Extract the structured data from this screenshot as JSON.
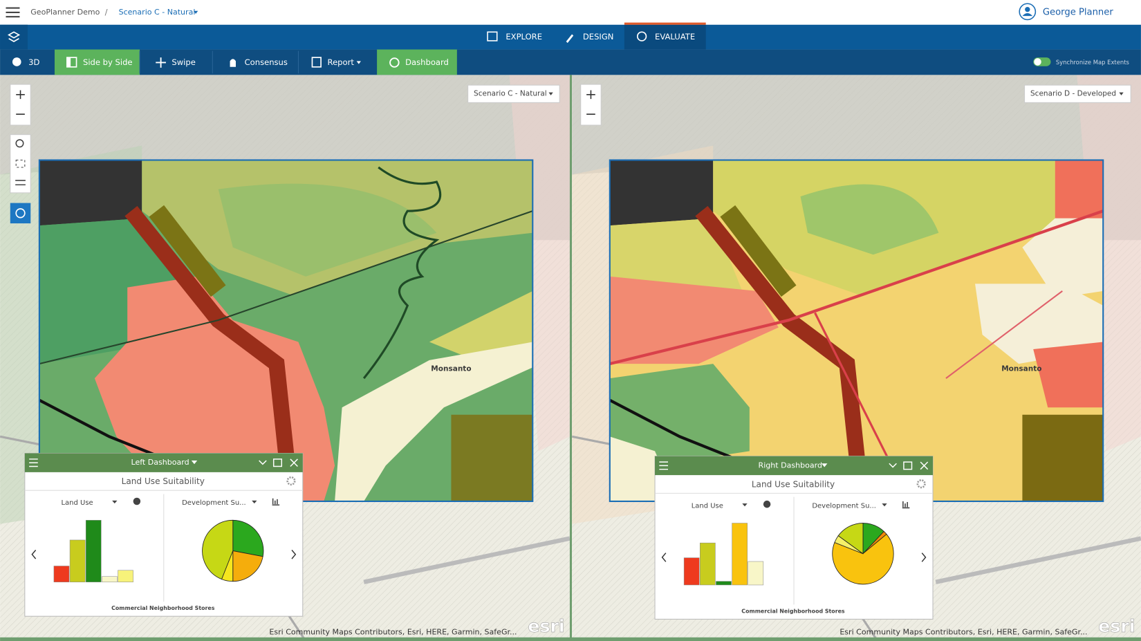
{
  "header": {
    "app": "GeoPlanner Demo",
    "separator": "/",
    "scenario": "Scenario C - Natural",
    "user": "George Planner"
  },
  "nav": {
    "tabs": [
      "EXPLORE",
      "DESIGN",
      "EVALUATE"
    ]
  },
  "toolbar": {
    "items": [
      "3D",
      "Side by Side",
      "Swipe",
      "Consensus",
      "Report",
      "Dashboard"
    ],
    "sync": "Synchronize Map Extents"
  },
  "maps": [
    {
      "scenario": "Scenario C - Natural",
      "place": "Monsanto",
      "attribution": "Esri Community Maps Contributors, Esri, HERE, Garmin, SafeGr...",
      "logo": "esri",
      "dashboard": {
        "title": "Left Dashboard",
        "heading": "Land Use Suitability",
        "left_label": "Land Use",
        "right_label": "Development Su...",
        "footer": "Commercial Neighborhood Stores",
        "bars": [
          26,
          68,
          100,
          9,
          19
        ],
        "bar_colors": [
          "#ee3a1e",
          "#c8cc1e",
          "#1f8a1a",
          "#f8f6c8",
          "#f7f27a"
        ],
        "pie": [
          28,
          22,
          6,
          44
        ],
        "pie_colors": [
          "#2ba81e",
          "#f5ad0c",
          "#f5e61e",
          "#c6d815"
        ]
      }
    },
    {
      "scenario": "Scenario D - Developed",
      "place": "Monsanto",
      "attribution": "Esri Community Maps Contributors, Esri, HERE, Garmin, SafeGr...",
      "logo": "esri",
      "dashboard": {
        "title": "Right Dashboard",
        "heading": "Land Use Suitability",
        "left_label": "Land Use",
        "right_label": "Development Su...",
        "footer": "Commercial Neighborhood Stores",
        "bars": [
          44,
          68,
          6,
          100,
          38
        ],
        "bar_colors": [
          "#ee3a1e",
          "#c8cc1e",
          "#1f8a1a",
          "#f9c30e",
          "#f8f6c8"
        ],
        "pie": [
          12,
          2,
          67,
          4,
          15
        ],
        "pie_colors": [
          "#2ba81e",
          "#f08a0a",
          "#f9c30e",
          "#f5f06a",
          "#c6d815"
        ]
      }
    }
  ]
}
